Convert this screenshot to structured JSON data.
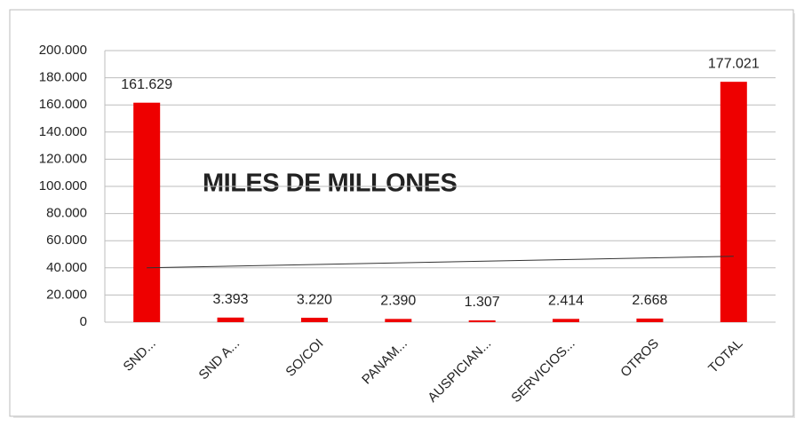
{
  "chart_data": {
    "type": "bar",
    "annotation": "MILES DE MILLONES",
    "categories": [
      "SND...",
      "SND A...",
      "SO/COI",
      "PANAM...",
      "AUSPICIAN...",
      "SERVICIOS...",
      "OTROS",
      "TOTAL"
    ],
    "values": [
      161629,
      3393,
      3220,
      2390,
      1307,
      2414,
      2668,
      177021
    ],
    "value_labels": [
      "161.629",
      "3.393",
      "3.220",
      "2.390",
      "1.307",
      "2.414",
      "2.668",
      "177.021"
    ],
    "color": "#ee0000",
    "ylim": [
      0,
      200000
    ],
    "yticks": [
      0,
      {
        "value": 20000,
        "label": "20.000"
      },
      {
        "value": 40000,
        "label": "40.000"
      },
      {
        "value": 60000,
        "label": "60.000"
      },
      {
        "value": 80000,
        "label": "80.000"
      },
      {
        "value": 100000,
        "label": "100.000"
      },
      {
        "value": 120000,
        "label": "120.000"
      },
      {
        "value": 140000,
        "label": "140.000"
      },
      {
        "value": 160000,
        "label": "160.000"
      },
      {
        "value": 180000,
        "label": "180.000"
      },
      {
        "value": 200000,
        "label": "200.000"
      }
    ],
    "grid": true,
    "trendline": {
      "values": [
        40000,
        48500
      ],
      "color": "#333333"
    }
  }
}
